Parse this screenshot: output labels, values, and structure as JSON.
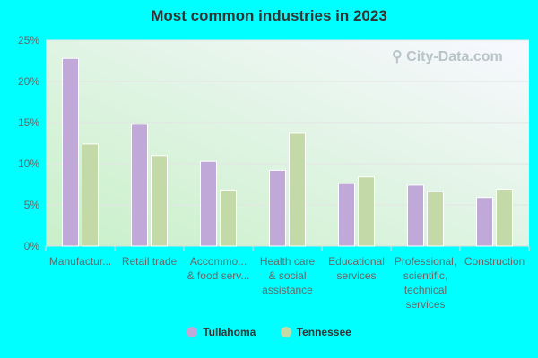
{
  "chart_data": {
    "type": "bar",
    "title": "Most common industries in 2023",
    "categories": [
      [
        "Manufactur..."
      ],
      [
        "Retail trade"
      ],
      [
        "Accommo...",
        "& food serv..."
      ],
      [
        "Health care",
        "& social",
        "assistance"
      ],
      [
        "Educational",
        "services"
      ],
      [
        "Professional,",
        "scientific,",
        "technical",
        "services"
      ],
      [
        "Construction"
      ]
    ],
    "series": [
      {
        "name": "Tullahoma",
        "color": "#c0a8d8",
        "values": [
          22.8,
          14.8,
          10.3,
          9.2,
          7.6,
          7.4,
          5.9
        ]
      },
      {
        "name": "Tennessee",
        "color": "#c4d9a8",
        "values": [
          12.4,
          11.0,
          6.8,
          13.7,
          8.4,
          6.6,
          6.9
        ]
      }
    ],
    "yticks": [
      "0%",
      "5%",
      "10%",
      "15%",
      "20%",
      "25%"
    ],
    "ylim": [
      0,
      25
    ],
    "grid": true,
    "legend": "bottom",
    "watermark": "City-Data.com"
  }
}
